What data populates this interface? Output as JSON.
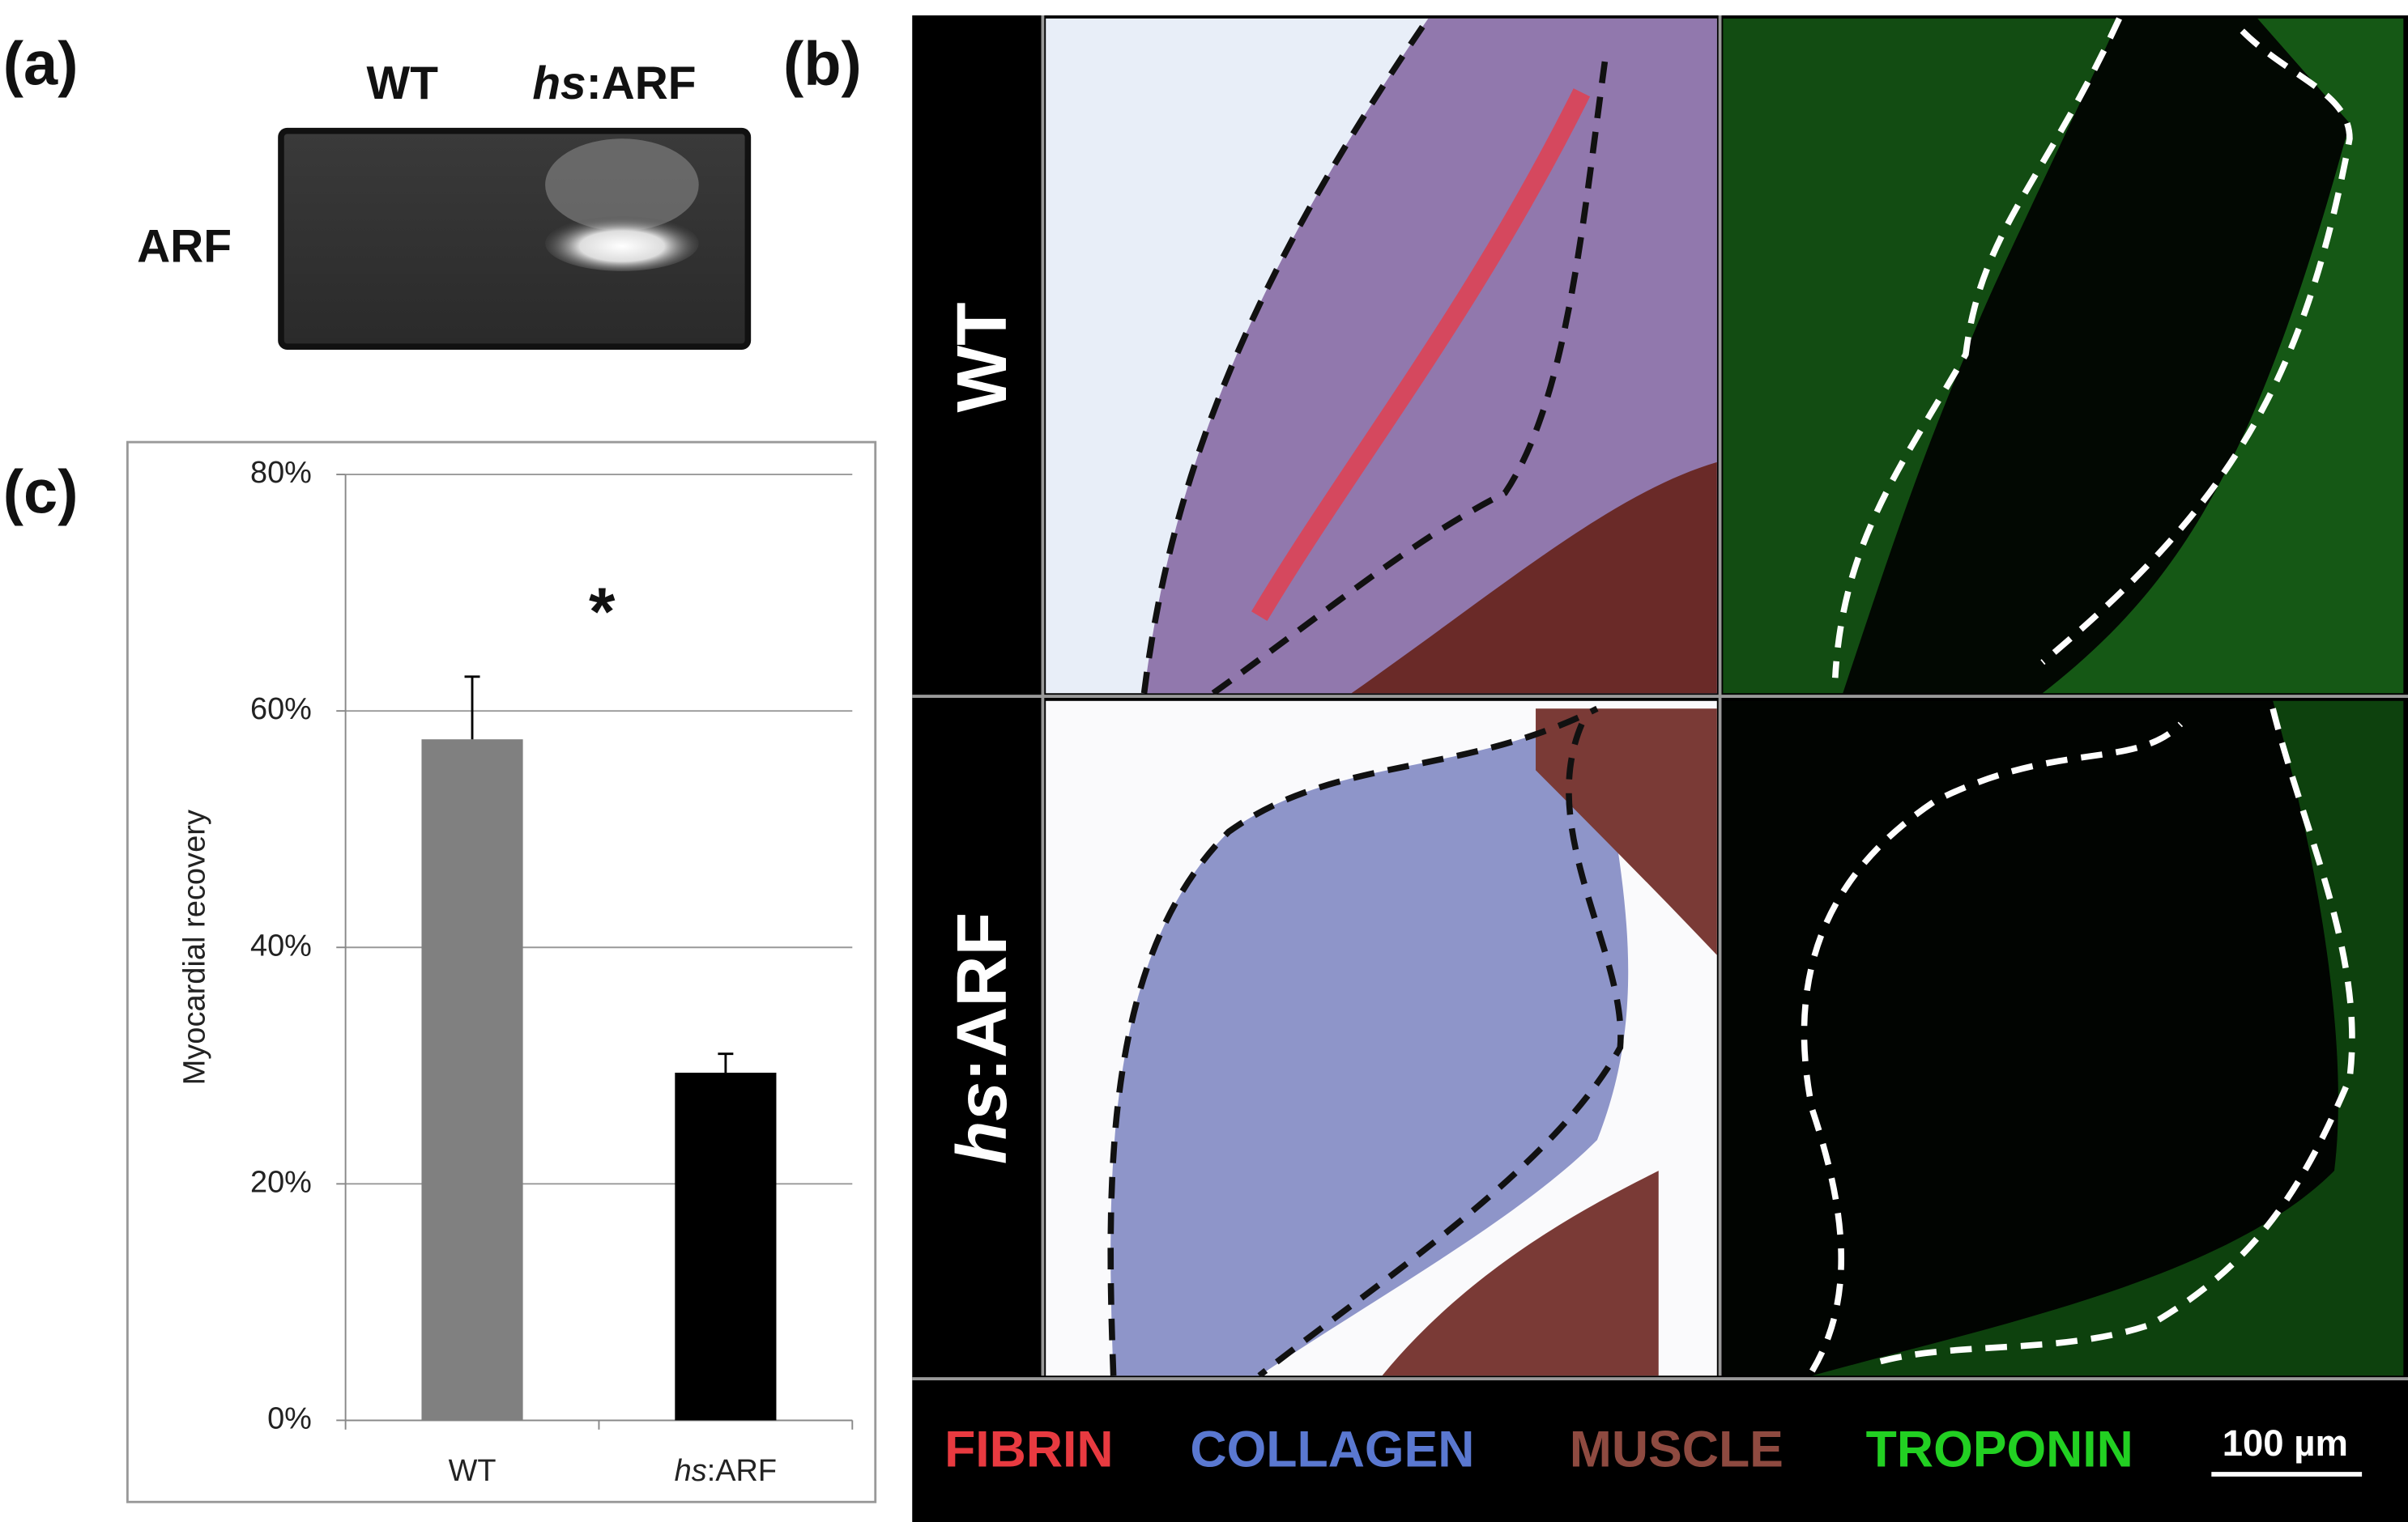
{
  "panels": {
    "a": {
      "label": "(a)",
      "lanes": [
        "WT",
        "hs:ARF"
      ],
      "band_label": "ARF"
    },
    "b": {
      "label": "(b)",
      "rows": [
        "WT",
        "hs:ARF"
      ],
      "legend": [
        "FIBRIN",
        "COLLAGEN",
        "MUSCLE",
        "TROPONIN"
      ],
      "scale_bar": "100 µm"
    },
    "c": {
      "label": "(c)"
    }
  },
  "chart_data": {
    "type": "bar",
    "ylabel": "Myocardial recovery",
    "annotation": "*",
    "categories": [
      "WT",
      "hs:ARF"
    ],
    "values": [
      57.6,
      29.4
    ],
    "errors": [
      5.3,
      1.6
    ],
    "colors": [
      "#808080",
      "#000000"
    ],
    "ylim": [
      0,
      80
    ],
    "yticks": [
      {
        "value": 0,
        "label": "0%"
      },
      {
        "value": 20,
        "label": "20%"
      },
      {
        "value": 40,
        "label": "40%"
      },
      {
        "value": 60,
        "label": "60%"
      },
      {
        "value": 80,
        "label": "80%"
      }
    ],
    "grid": true
  }
}
